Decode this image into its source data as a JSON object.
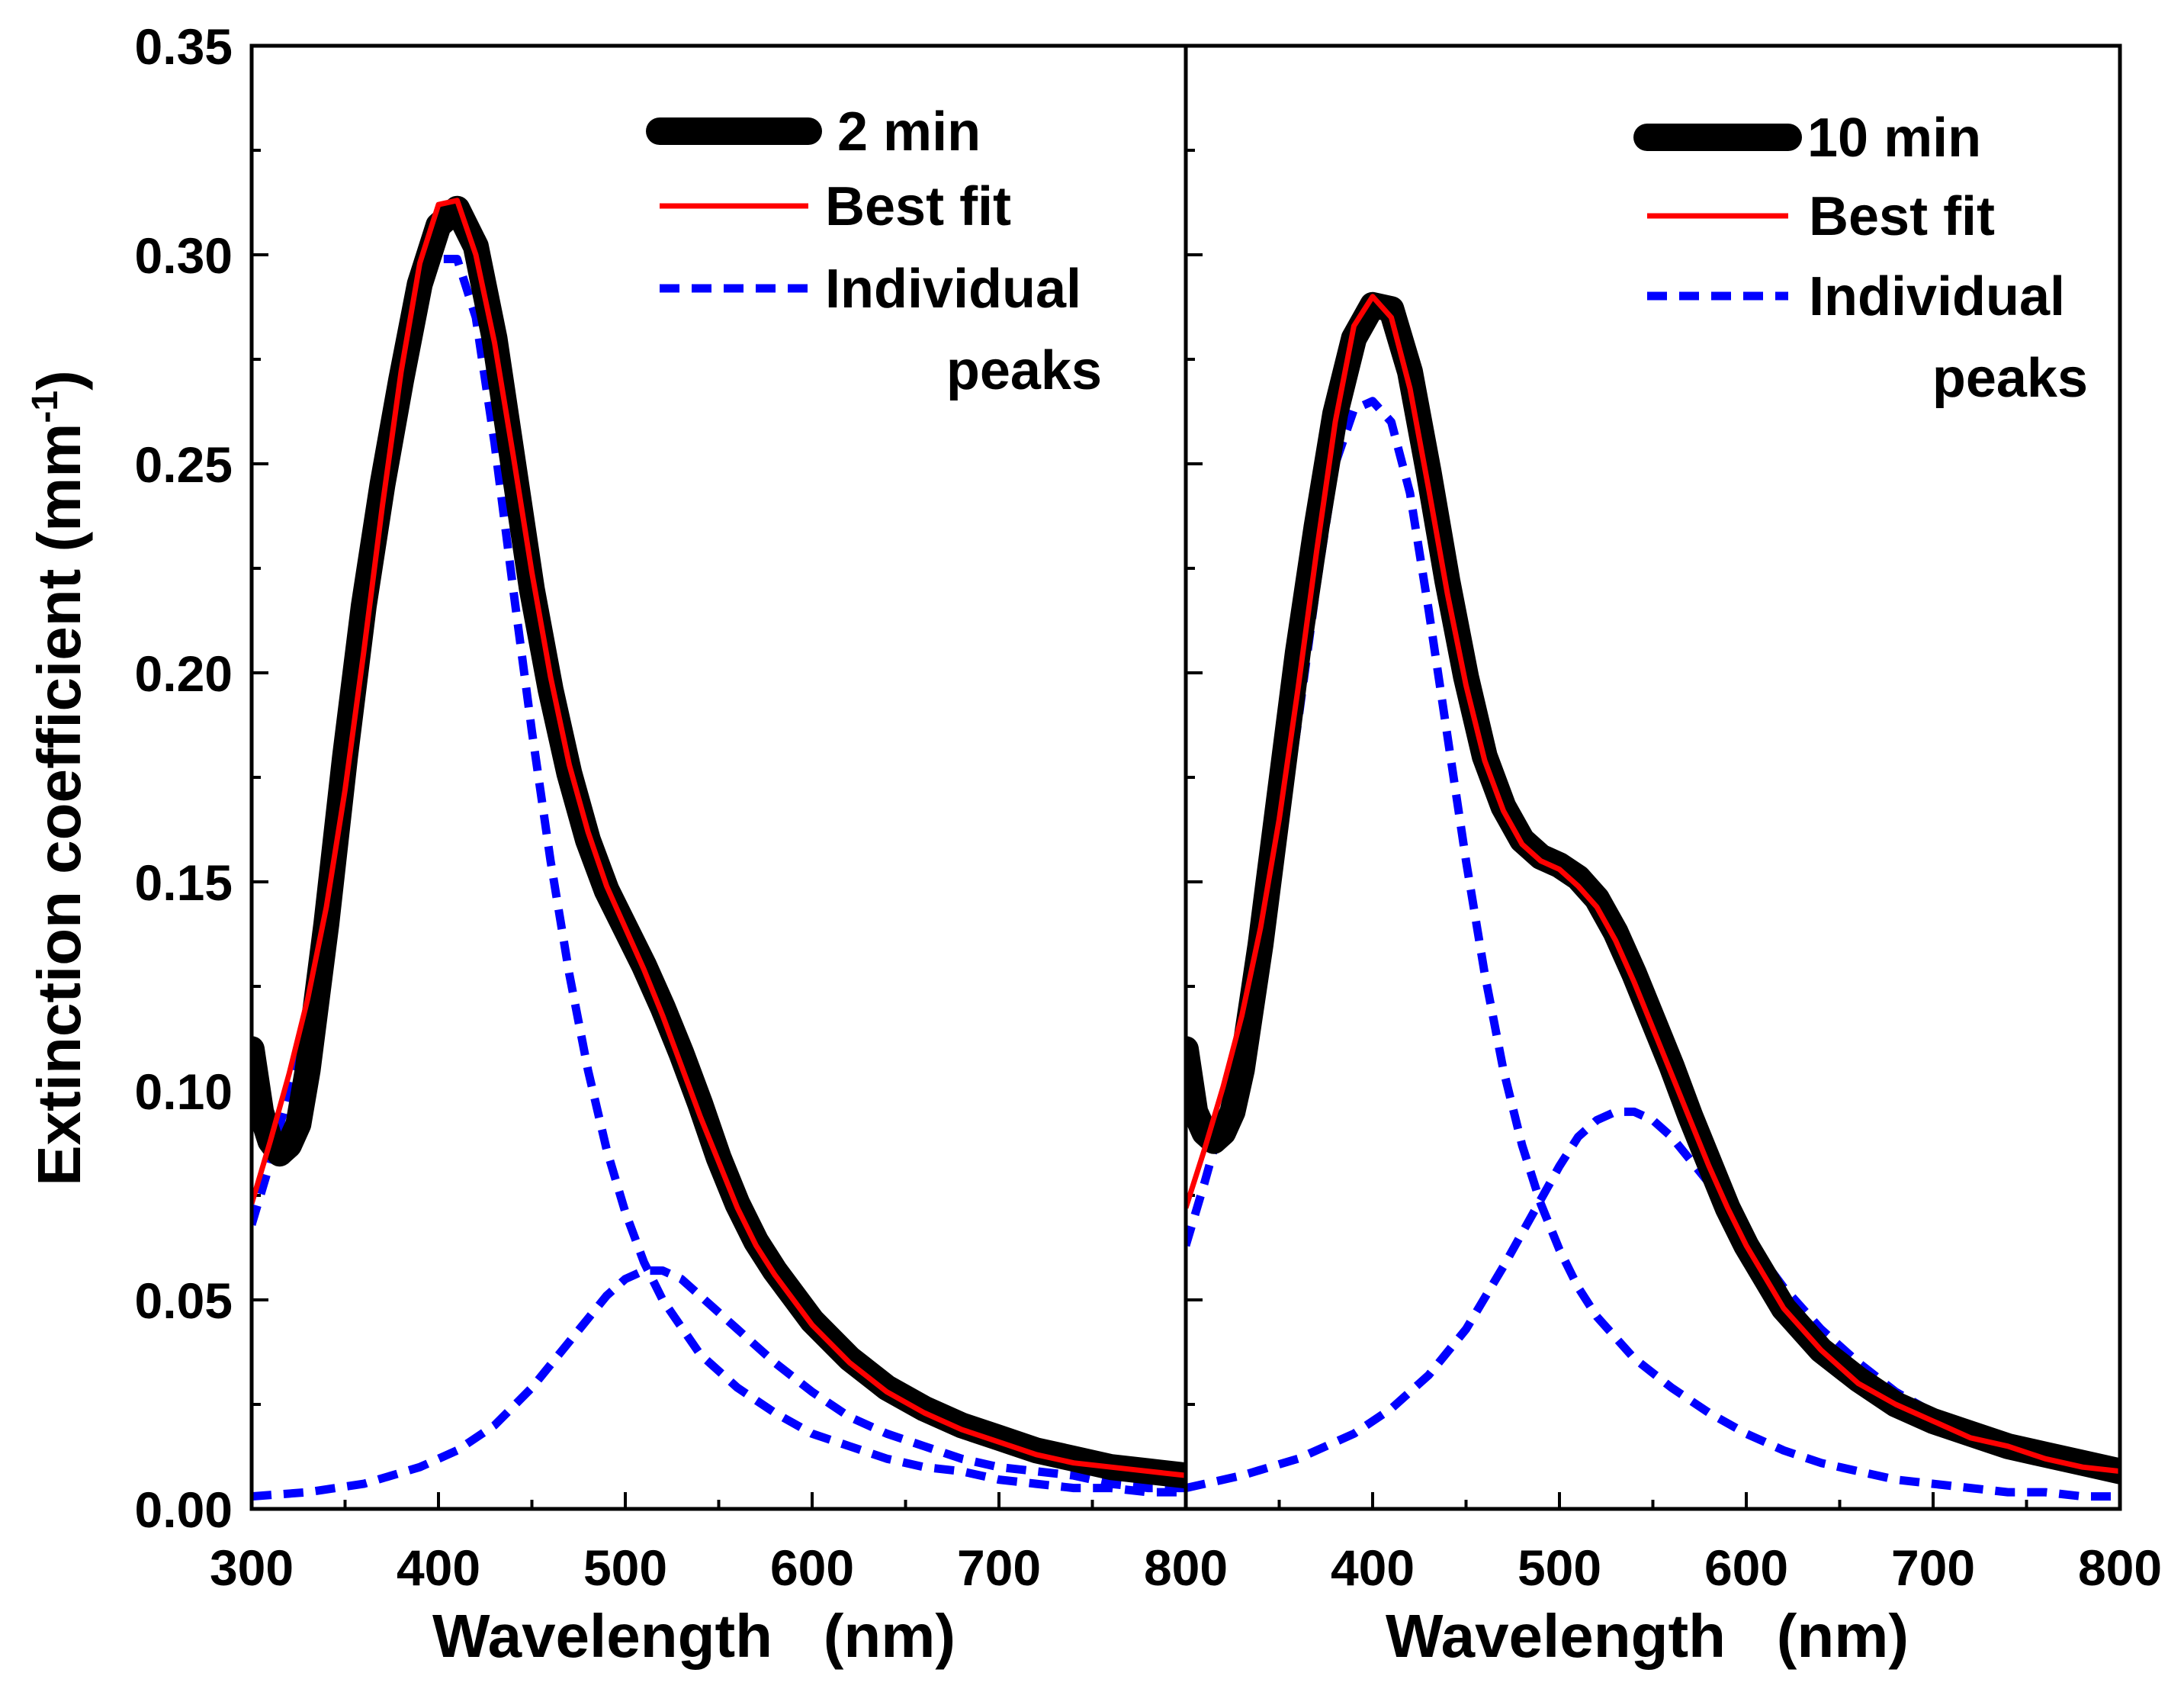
{
  "chart_data": [
    {
      "type": "line",
      "panel": "left",
      "legend_position": "top-right",
      "xlabel": "Wavelength   (nm)",
      "ylabel": "Extinction coefficient   (mm",
      "ylabel_sup": "-1",
      "ylabel_close": ")",
      "xlim": [
        300,
        800
      ],
      "ylim": [
        0,
        0.35
      ],
      "xticks": [
        "300",
        "400",
        "500",
        "600",
        "700",
        "800"
      ],
      "yticks": [
        "0.00",
        "0.05",
        "0.10",
        "0.15",
        "0.20",
        "0.25",
        "0.30",
        "0.35"
      ],
      "legend": {
        "data": "2 min",
        "fit": "Best fit",
        "peaks_line1": "Individual",
        "peaks_line2": "peaks"
      },
      "colors": {
        "data": "#000000",
        "fit": "#ff0000",
        "peaks": "#0000ff"
      },
      "series": [
        {
          "name": "2 min",
          "x": [
            300,
            305,
            310,
            315,
            320,
            325,
            330,
            340,
            350,
            360,
            370,
            380,
            390,
            400,
            410,
            420,
            430,
            440,
            450,
            460,
            470,
            480,
            490,
            500,
            510,
            520,
            530,
            540,
            550,
            560,
            570,
            580,
            590,
            600,
            620,
            640,
            660,
            680,
            700,
            720,
            740,
            760,
            780,
            800
          ],
          "y": [
            0.11,
            0.095,
            0.088,
            0.085,
            0.087,
            0.092,
            0.105,
            0.14,
            0.18,
            0.216,
            0.245,
            0.27,
            0.293,
            0.307,
            0.311,
            0.302,
            0.28,
            0.25,
            0.22,
            0.196,
            0.176,
            0.16,
            0.148,
            0.139,
            0.13,
            0.12,
            0.109,
            0.097,
            0.084,
            0.073,
            0.064,
            0.057,
            0.051,
            0.045,
            0.036,
            0.029,
            0.024,
            0.02,
            0.017,
            0.014,
            0.012,
            0.01,
            0.009,
            0.008
          ]
        },
        {
          "name": "Best fit",
          "x": [
            300,
            310,
            320,
            330,
            340,
            350,
            360,
            370,
            380,
            390,
            400,
            410,
            420,
            430,
            440,
            450,
            460,
            470,
            480,
            490,
            500,
            510,
            520,
            530,
            540,
            550,
            560,
            570,
            580,
            590,
            600,
            620,
            640,
            660,
            680,
            700,
            720,
            740,
            760,
            780,
            800
          ],
          "y": [
            0.073,
            0.088,
            0.104,
            0.122,
            0.144,
            0.172,
            0.205,
            0.24,
            0.272,
            0.298,
            0.312,
            0.313,
            0.3,
            0.279,
            0.252,
            0.224,
            0.199,
            0.178,
            0.162,
            0.149,
            0.139,
            0.129,
            0.118,
            0.106,
            0.094,
            0.083,
            0.072,
            0.063,
            0.056,
            0.05,
            0.044,
            0.035,
            0.028,
            0.023,
            0.019,
            0.016,
            0.013,
            0.011,
            0.01,
            0.009,
            0.008
          ]
        },
        {
          "name": "Individual peak 1",
          "x": [
            300,
            310,
            320,
            330,
            340,
            350,
            360,
            370,
            380,
            390,
            400,
            410,
            420,
            430,
            440,
            450,
            460,
            470,
            480,
            490,
            500,
            510,
            520,
            540,
            560,
            580,
            600,
            620,
            640,
            660,
            680,
            700,
            720,
            740,
            760,
            780,
            800
          ],
          "y": [
            0.068,
            0.083,
            0.1,
            0.119,
            0.142,
            0.17,
            0.203,
            0.238,
            0.27,
            0.293,
            0.299,
            0.299,
            0.285,
            0.255,
            0.22,
            0.186,
            0.155,
            0.128,
            0.105,
            0.086,
            0.071,
            0.059,
            0.05,
            0.037,
            0.029,
            0.023,
            0.018,
            0.015,
            0.012,
            0.01,
            0.009,
            0.007,
            0.006,
            0.005,
            0.005,
            0.004,
            0.004
          ]
        },
        {
          "name": "Individual peak 2",
          "x": [
            300,
            330,
            360,
            390,
            410,
            430,
            450,
            470,
            490,
            500,
            510,
            520,
            530,
            540,
            560,
            580,
            600,
            620,
            640,
            660,
            680,
            700,
            720,
            740,
            760,
            780,
            800
          ],
          "y": [
            0.003,
            0.004,
            0.006,
            0.01,
            0.014,
            0.02,
            0.029,
            0.04,
            0.051,
            0.055,
            0.057,
            0.057,
            0.055,
            0.051,
            0.043,
            0.035,
            0.028,
            0.022,
            0.018,
            0.015,
            0.012,
            0.01,
            0.009,
            0.008,
            0.006,
            0.005,
            0.005
          ]
        }
      ]
    },
    {
      "type": "line",
      "panel": "right",
      "legend_position": "top-right",
      "xlabel": "Wavelength   (nm)",
      "xlim": [
        300,
        800
      ],
      "ylim": [
        0,
        0.35
      ],
      "xticks": [
        "400",
        "500",
        "600",
        "700",
        "800"
      ],
      "legend": {
        "data": "10 min",
        "fit": "Best fit",
        "peaks_line1": "Individual",
        "peaks_line2": "peaks"
      },
      "colors": {
        "data": "#000000",
        "fit": "#ff0000",
        "peaks": "#0000ff"
      },
      "series": [
        {
          "name": "10 min",
          "x": [
            300,
            305,
            310,
            315,
            320,
            325,
            330,
            340,
            350,
            360,
            370,
            380,
            390,
            400,
            410,
            420,
            430,
            440,
            450,
            460,
            470,
            480,
            490,
            500,
            510,
            520,
            530,
            540,
            550,
            560,
            570,
            580,
            590,
            600,
            620,
            640,
            660,
            680,
            700,
            720,
            740,
            760,
            780,
            800
          ],
          "y": [
            0.11,
            0.095,
            0.09,
            0.088,
            0.09,
            0.095,
            0.105,
            0.135,
            0.17,
            0.205,
            0.235,
            0.262,
            0.28,
            0.288,
            0.287,
            0.272,
            0.248,
            0.222,
            0.199,
            0.18,
            0.168,
            0.16,
            0.156,
            0.154,
            0.151,
            0.146,
            0.138,
            0.128,
            0.117,
            0.106,
            0.094,
            0.083,
            0.072,
            0.063,
            0.048,
            0.038,
            0.031,
            0.025,
            0.021,
            0.018,
            0.015,
            0.013,
            0.011,
            0.009
          ]
        },
        {
          "name": "Best fit",
          "x": [
            300,
            310,
            320,
            330,
            340,
            350,
            360,
            370,
            380,
            390,
            400,
            410,
            420,
            430,
            440,
            450,
            460,
            470,
            480,
            490,
            500,
            510,
            520,
            530,
            540,
            550,
            560,
            570,
            580,
            590,
            600,
            620,
            640,
            660,
            680,
            700,
            720,
            740,
            760,
            780,
            800
          ],
          "y": [
            0.072,
            0.086,
            0.101,
            0.118,
            0.139,
            0.165,
            0.196,
            0.229,
            0.26,
            0.283,
            0.29,
            0.285,
            0.268,
            0.244,
            0.219,
            0.197,
            0.179,
            0.167,
            0.159,
            0.155,
            0.153,
            0.149,
            0.144,
            0.136,
            0.126,
            0.115,
            0.104,
            0.093,
            0.082,
            0.072,
            0.063,
            0.048,
            0.038,
            0.03,
            0.025,
            0.021,
            0.017,
            0.015,
            0.012,
            0.01,
            0.009
          ]
        },
        {
          "name": "Individual peak 1",
          "x": [
            300,
            310,
            320,
            330,
            340,
            350,
            360,
            370,
            380,
            390,
            400,
            410,
            420,
            430,
            440,
            450,
            460,
            470,
            480,
            490,
            500,
            510,
            520,
            540,
            560,
            580,
            600,
            620,
            640,
            660,
            680,
            700,
            720,
            740,
            760,
            780,
            800
          ],
          "y": [
            0.063,
            0.078,
            0.094,
            0.112,
            0.132,
            0.158,
            0.188,
            0.221,
            0.25,
            0.263,
            0.265,
            0.26,
            0.243,
            0.215,
            0.185,
            0.155,
            0.128,
            0.105,
            0.087,
            0.073,
            0.062,
            0.053,
            0.046,
            0.036,
            0.029,
            0.023,
            0.018,
            0.014,
            0.011,
            0.009,
            0.007,
            0.006,
            0.005,
            0.004,
            0.004,
            0.003,
            0.003
          ]
        },
        {
          "name": "Individual peak 2",
          "x": [
            300,
            330,
            360,
            390,
            410,
            430,
            450,
            470,
            490,
            500,
            510,
            520,
            530,
            540,
            550,
            560,
            580,
            600,
            620,
            640,
            660,
            680,
            700,
            720,
            740,
            760,
            780,
            800
          ],
          "y": [
            0.005,
            0.008,
            0.012,
            0.018,
            0.024,
            0.032,
            0.043,
            0.058,
            0.074,
            0.082,
            0.089,
            0.093,
            0.095,
            0.095,
            0.093,
            0.089,
            0.078,
            0.065,
            0.053,
            0.043,
            0.035,
            0.028,
            0.023,
            0.019,
            0.016,
            0.013,
            0.011,
            0.009
          ]
        }
      ]
    }
  ]
}
